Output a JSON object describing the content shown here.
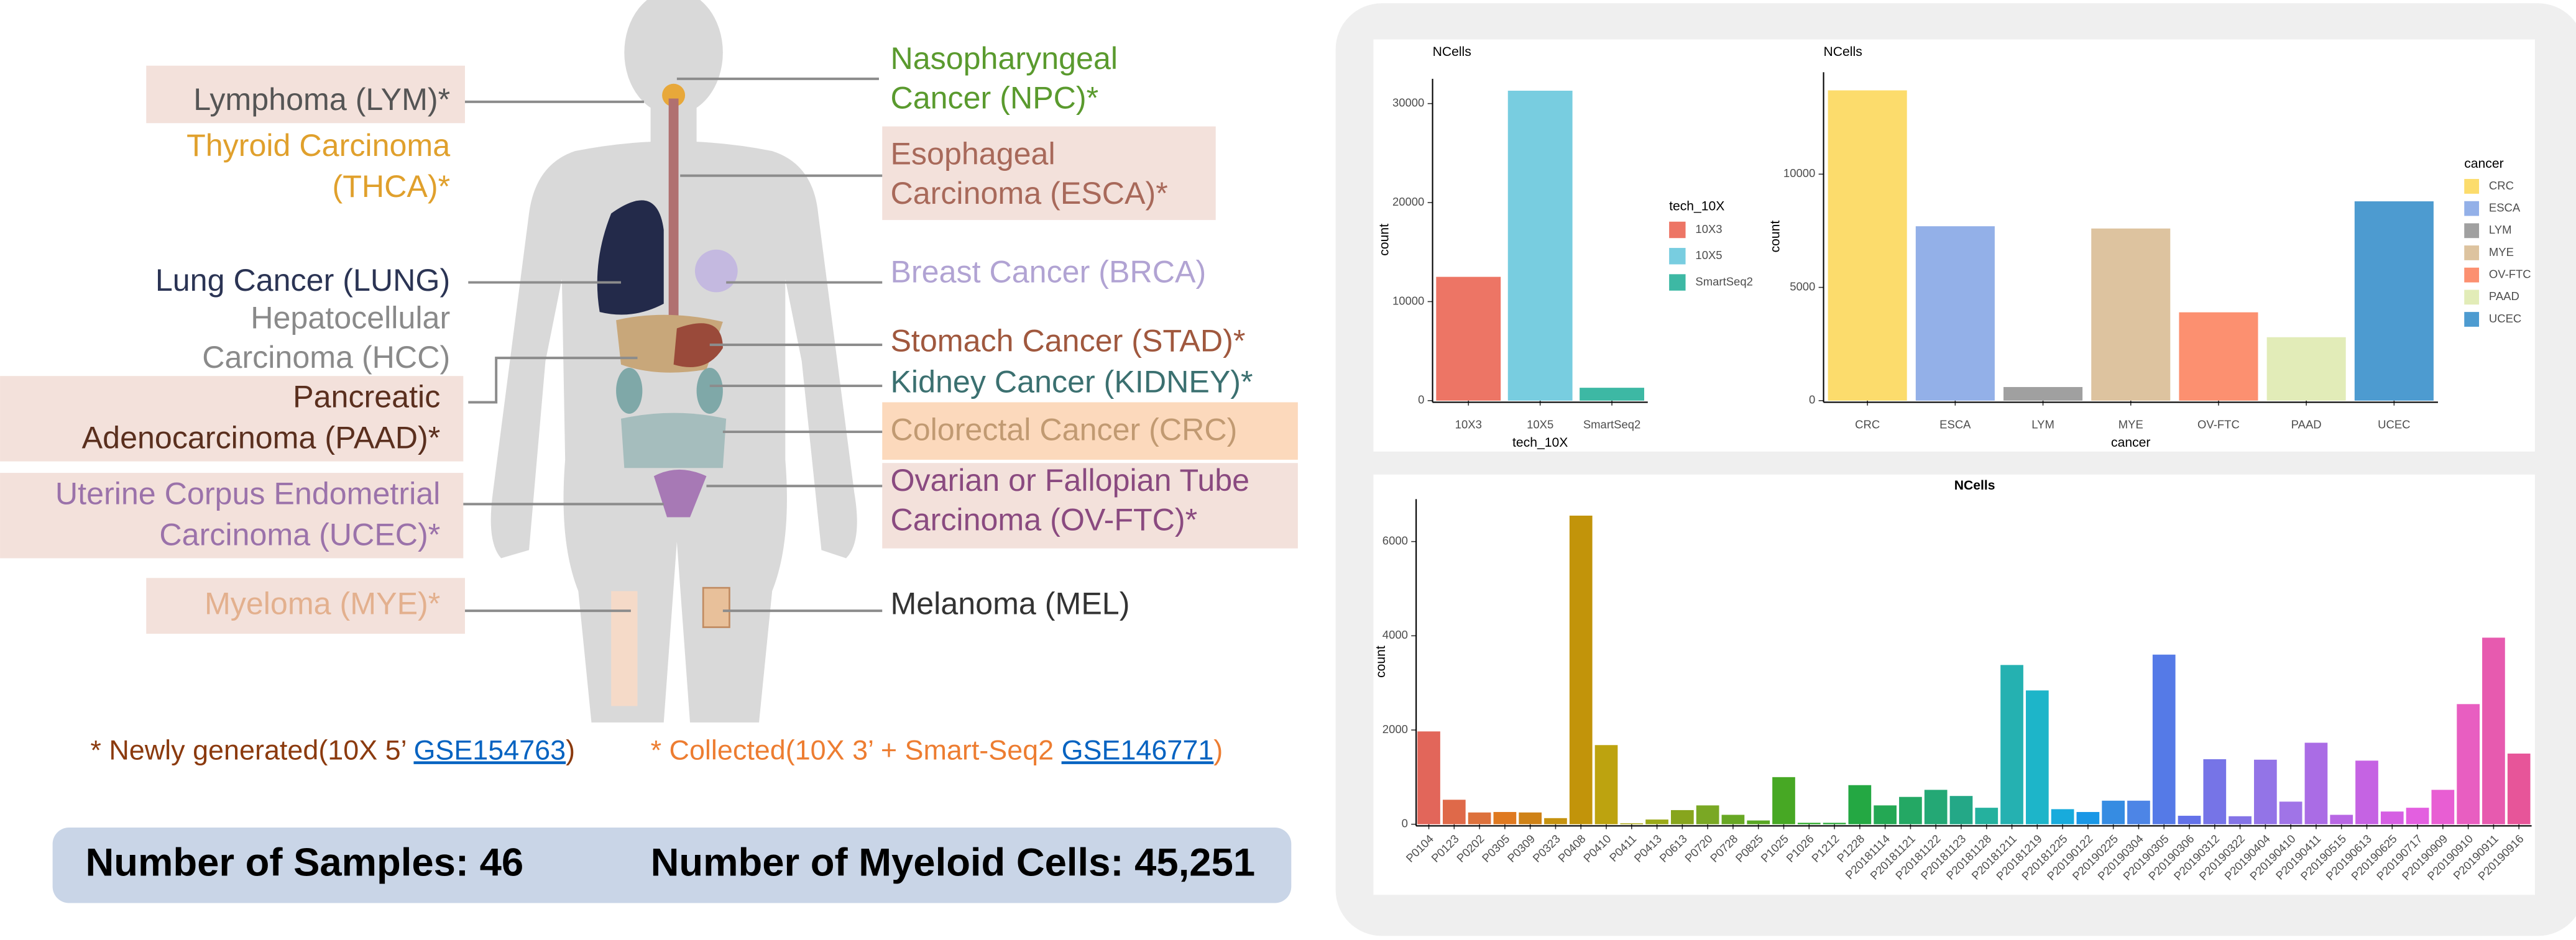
{
  "diagram": {
    "labels": [
      {
        "lines": [
          "Lymphoma (LYM)*"
        ],
        "color": "#555555"
      },
      {
        "lines": [
          "Thyroid Carcinoma",
          "(THCA)*"
        ],
        "color": "#e0a02c"
      },
      {
        "lines": [
          "Lung Cancer (LUNG)"
        ],
        "color": "#2b3454"
      },
      {
        "lines": [
          "Hepatocellular",
          "Carcinoma (HCC)"
        ],
        "color": "#8a8a8a"
      },
      {
        "lines": [
          "Pancreatic",
          "Adenocarcinoma (PAAD)*"
        ],
        "color": "#5a2f1e"
      },
      {
        "lines": [
          "Uterine Corpus Endometrial",
          "Carcinoma (UCEC)*"
        ],
        "color": "#9b72aa"
      },
      {
        "lines": [
          "Myeloma (MYE)*"
        ],
        "color": "#e3b08e"
      },
      {
        "lines": [
          "Nasopharyngeal",
          "Cancer (NPC)*"
        ],
        "color": "#5a9a2e"
      },
      {
        "lines": [
          "Esophageal",
          "Carcinoma (ESCA)*"
        ],
        "color": "#a8695a"
      },
      {
        "lines": [
          "Breast Cancer (BRCA)"
        ],
        "color": "#b1a3d3"
      },
      {
        "lines": [
          "Stomach Cancer (STAD)*"
        ],
        "color": "#a0583e"
      },
      {
        "lines": [
          "Kidney Cancer (KIDNEY)*"
        ],
        "color": "#3b7070"
      },
      {
        "lines": [
          "Colorectal Cancer (CRC)"
        ],
        "color": "#c19a72"
      },
      {
        "lines": [
          "Ovarian or Fallopian Tube",
          "Carcinoma (OV-FTC)*"
        ],
        "color": "#8a4a80"
      },
      {
        "lines": [
          "Melanoma (MEL)"
        ],
        "color": "#333333"
      }
    ]
  },
  "footnote": {
    "generated": {
      "text": "* Newly generated(10X 5’ ",
      "link": "GSE154763",
      "close": ")",
      "color": "#8b3a0e"
    },
    "collected": {
      "text": "* Collected(10X 3’ + Smart-Seq2 ",
      "link": "GSE146771",
      "close": ")",
      "color": "#ed7d31"
    }
  },
  "summary": {
    "samples": "Number of Samples: 46",
    "cells": "Number of Myeloid Cells: 45,251"
  },
  "chart_data": [
    {
      "type": "bar",
      "title": "NCells",
      "ylabel": "count",
      "xlabel": "tech_10X",
      "categories": [
        "10X3",
        "10X5",
        "SmartSeq2"
      ],
      "values": [
        12500,
        31300,
        1300
      ],
      "colors": [
        "#ed7565",
        "#78cde0",
        "#3db8a4"
      ],
      "ylim": [
        0,
        32500
      ],
      "yticks": [
        0,
        10000,
        20000,
        30000
      ],
      "legend": {
        "title": "tech_10X",
        "position": "right"
      }
    },
    {
      "type": "bar",
      "title": "NCells",
      "ylabel": "count",
      "xlabel": "cancer",
      "categories": [
        "CRC",
        "ESCA",
        "LYM",
        "MYE",
        "OV-FTC",
        "PAAD",
        "UCEC"
      ],
      "values": [
        13700,
        7700,
        600,
        7600,
        3900,
        2800,
        8800
      ],
      "colors": [
        "#fcdc6c",
        "#93b0e8",
        "#a0a0a0",
        "#ddc39f",
        "#fc9070",
        "#e2ecb8",
        "#4d9bd0"
      ],
      "ylim": [
        0,
        14500
      ],
      "yticks": [
        0,
        5000,
        10000
      ],
      "legend": {
        "title": "cancer",
        "position": "right"
      }
    },
    {
      "type": "bar",
      "title": "NCells",
      "ylabel": "count",
      "categories": [
        "P0104",
        "P0123",
        "P0202",
        "P0305",
        "P0309",
        "P0323",
        "P0408",
        "P0410",
        "P0411",
        "P0413",
        "P0613",
        "P0720",
        "P0728",
        "P0825",
        "P1025",
        "P1026",
        "P1212",
        "P1228",
        "P20181114",
        "P20181121",
        "P20181122",
        "P20181123",
        "P20181128",
        "P20181211",
        "P20181219",
        "P20181225",
        "P20190122",
        "P20190225",
        "P20190304",
        "P20190305",
        "P20190306",
        "P20190312",
        "P20190322",
        "P20190404",
        "P20190410",
        "P20190411",
        "P20190515",
        "P20190613",
        "P20190625",
        "P20190717",
        "P20190909",
        "P20190910",
        "P20190911",
        "P20190916"
      ],
      "values": [
        1970,
        520,
        250,
        260,
        250,
        130,
        6550,
        1680,
        20,
        100,
        300,
        400,
        200,
        80,
        1000,
        30,
        30,
        830,
        400,
        580,
        730,
        600,
        350,
        3380,
        2840,
        320,
        260,
        500,
        500,
        3600,
        180,
        1380,
        170,
        1370,
        480,
        1730,
        200,
        1350,
        270,
        350,
        730,
        2550,
        3960,
        1500
      ],
      "colors": [
        "hsl(5,70%,62%)",
        "hsl(13,70%,58%)",
        "hsl(20,70%,55%)",
        "hsl(28,75%,50%)",
        "hsl(35,80%,45%)",
        "hsl(43,85%,42%)",
        "hsl(45,90%,40%)",
        "hsl(51,85%,40%)",
        "hsl(58,80%,38%)",
        "hsl(66,75%,38%)",
        "hsl(73,70%,38%)",
        "hsl(81,65%,40%)",
        "hsl(89,65%,40%)",
        "hsl(96,65%,40%)",
        "hsl(104,65%,40%)",
        "hsl(119,65%,40%)",
        "hsl(127,65%,40%)",
        "hsl(134,65%,40%)",
        "hsl(142,65%,40%)",
        "hsl(149,65%,40%)",
        "hsl(157,65%,40%)",
        "hsl(165,65%,40%)",
        "hsl(172,65%,42%)",
        "hsl(180,65%,42%)",
        "hsl(187,75%,45%)",
        "hsl(195,80%,48%)",
        "hsl(203,80%,50%)",
        "hsl(210,75%,55%)",
        "hsl(218,75%,60%)",
        "hsl(225,75%,62%)",
        "hsl(233,75%,65%)",
        "hsl(241,70%,68%)",
        "hsl(248,70%,68%)",
        "hsl(256,70%,68%)",
        "hsl(263,70%,68%)",
        "hsl(271,70%,66%)",
        "hsl(279,70%,65%)",
        "hsl(286,70%,64%)",
        "hsl(294,70%,63%)",
        "hsl(301,70%,63%)",
        "hsl(309,75%,64%)",
        "hsl(317,75%,64%)",
        "hsl(324,75%,63%)",
        "hsl(332,75%,62%)"
      ],
      "ylim": [
        0,
        6900
      ],
      "yticks": [
        0,
        2000,
        4000,
        6000
      ]
    }
  ]
}
